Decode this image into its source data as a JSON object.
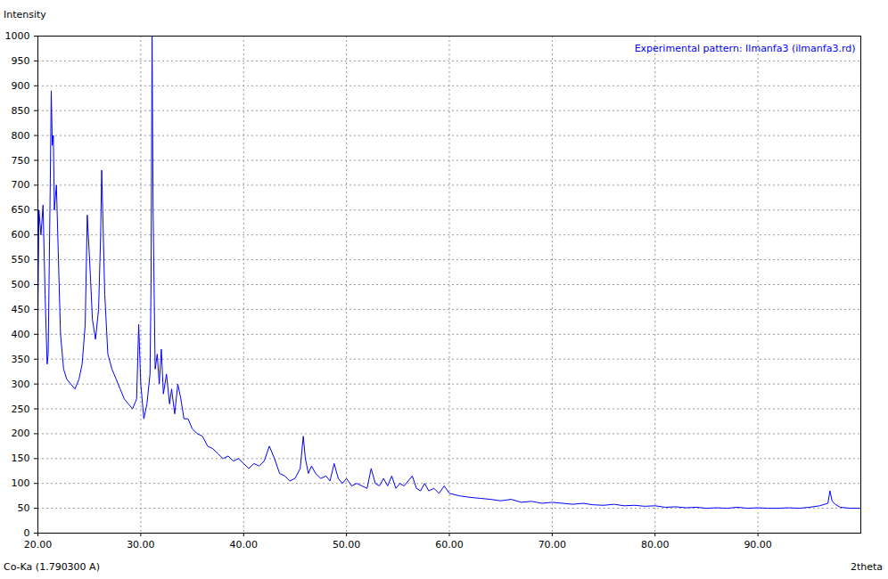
{
  "chart_data": {
    "type": "line",
    "title": "Experimental pattern: Ilmanfa3 (ilmanfa3.rd)",
    "x_label": "2theta",
    "y_label": "Intensity",
    "annotation": "Co-Ka (1.790300 A)",
    "color": "#0000ff",
    "grid": true,
    "xlim": [
      20,
      100
    ],
    "ylim": [
      0,
      1000
    ],
    "xticks": [
      {
        "value": 20,
        "label": "20.00"
      },
      {
        "value": 30,
        "label": "30.00"
      },
      {
        "value": 40,
        "label": "40.00"
      },
      {
        "value": 50,
        "label": "50.00"
      },
      {
        "value": 60,
        "label": "60.00"
      },
      {
        "value": 70,
        "label": "70.00"
      },
      {
        "value": 80,
        "label": "80.00"
      },
      {
        "value": 90,
        "label": "90.00"
      }
    ],
    "yticks": [
      0,
      50,
      100,
      150,
      200,
      250,
      300,
      350,
      400,
      450,
      500,
      550,
      600,
      650,
      700,
      750,
      800,
      850,
      900,
      950,
      1000
    ],
    "x": [
      20.0,
      20.1,
      20.3,
      20.5,
      20.7,
      20.9,
      21.0,
      21.2,
      21.3,
      21.4,
      21.5,
      21.6,
      21.8,
      22.0,
      22.2,
      22.5,
      22.8,
      23.2,
      23.6,
      24.0,
      24.3,
      24.6,
      24.8,
      24.9,
      25.1,
      25.3,
      25.6,
      25.9,
      26.1,
      26.2,
      26.3,
      26.5,
      26.8,
      27.2,
      27.6,
      28.0,
      28.4,
      28.8,
      29.2,
      29.6,
      29.8,
      30.0,
      30.3,
      30.6,
      30.9,
      31.0,
      31.1,
      31.2,
      31.4,
      31.6,
      31.8,
      32.0,
      32.2,
      32.5,
      32.8,
      33.0,
      33.3,
      33.6,
      33.9,
      34.2,
      34.6,
      35.0,
      35.5,
      36.0,
      36.5,
      37.0,
      37.5,
      38.0,
      38.5,
      39.0,
      39.5,
      40.0,
      40.5,
      41.0,
      41.5,
      42.0,
      42.5,
      43.0,
      43.5,
      44.0,
      44.5,
      45.0,
      45.5,
      45.8,
      46.0,
      46.3,
      46.6,
      47.0,
      47.5,
      48.0,
      48.4,
      48.8,
      49.2,
      49.6,
      50.0,
      50.5,
      51.0,
      51.5,
      52.0,
      52.4,
      52.8,
      53.2,
      53.6,
      54.0,
      54.4,
      54.8,
      55.2,
      55.6,
      56.0,
      56.4,
      56.8,
      57.2,
      57.6,
      58.0,
      58.5,
      59.0,
      59.5,
      60.0,
      61.0,
      62.0,
      63.0,
      64.0,
      65.0,
      66.0,
      67.0,
      68.0,
      69.0,
      70.0,
      71.0,
      72.0,
      73.0,
      74.0,
      75.0,
      76.0,
      77.0,
      78.0,
      79.0,
      80.0,
      81.0,
      82.0,
      83.0,
      84.0,
      85.0,
      86.0,
      87.0,
      88.0,
      89.0,
      90.0,
      91.0,
      92.0,
      93.0,
      94.0,
      95.0,
      96.0,
      96.8,
      97.0,
      97.2,
      97.5,
      98.0,
      99.0,
      100.0
    ],
    "values": [
      430,
      650,
      600,
      660,
      480,
      340,
      360,
      700,
      890,
      780,
      800,
      650,
      700,
      550,
      400,
      330,
      310,
      300,
      290,
      310,
      340,
      420,
      640,
      600,
      520,
      430,
      390,
      450,
      600,
      730,
      650,
      480,
      360,
      330,
      310,
      290,
      270,
      260,
      250,
      270,
      420,
      300,
      230,
      260,
      320,
      500,
      1000,
      650,
      330,
      360,
      300,
      370,
      280,
      320,
      260,
      290,
      240,
      300,
      270,
      230,
      230,
      210,
      200,
      195,
      175,
      170,
      160,
      150,
      155,
      145,
      150,
      140,
      130,
      140,
      135,
      145,
      175,
      150,
      120,
      115,
      105,
      110,
      130,
      195,
      150,
      120,
      135,
      120,
      110,
      115,
      105,
      140,
      110,
      100,
      110,
      95,
      100,
      95,
      90,
      130,
      100,
      95,
      110,
      95,
      115,
      90,
      100,
      95,
      105,
      115,
      90,
      85,
      100,
      85,
      90,
      80,
      95,
      80,
      75,
      72,
      70,
      68,
      65,
      68,
      62,
      64,
      60,
      62,
      60,
      58,
      60,
      57,
      56,
      58,
      55,
      56,
      54,
      55,
      52,
      53,
      51,
      52,
      50,
      51,
      50,
      52,
      50,
      51,
      50,
      50,
      51,
      50,
      52,
      55,
      60,
      85,
      65,
      58,
      52,
      50,
      50
    ]
  }
}
